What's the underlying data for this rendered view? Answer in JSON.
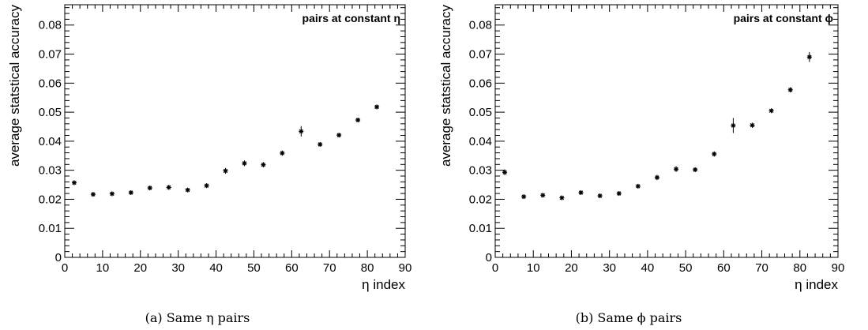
{
  "chart_data": [
    {
      "type": "scatter",
      "annotation": "pairs at constant η",
      "xlabel": "η index",
      "ylabel": "average statstical accuracy",
      "caption": "(a) Same η pairs",
      "xlim": [
        0,
        90
      ],
      "ylim": [
        0,
        0.087
      ],
      "x_ticks": [
        "0",
        "10",
        "20",
        "30",
        "40",
        "50",
        "60",
        "70",
        "80",
        "90"
      ],
      "y_ticks": [
        "0",
        "0.01",
        "0.02",
        "0.03",
        "0.04",
        "0.05",
        "0.06",
        "0.07",
        "0.08"
      ],
      "grid": false,
      "x": [
        2.5,
        7.5,
        12.5,
        17.5,
        22.5,
        27.5,
        32.5,
        37.5,
        42.5,
        47.5,
        52.5,
        57.5,
        62.5,
        67.5,
        72.5,
        77.5,
        82.5
      ],
      "y": [
        0.0257,
        0.0217,
        0.0219,
        0.0223,
        0.0239,
        0.0241,
        0.0232,
        0.0247,
        0.0298,
        0.0324,
        0.0319,
        0.0359,
        0.0434,
        0.0389,
        0.0421,
        0.0473,
        0.0518
      ],
      "yerr": [
        0.0008,
        0.0005,
        0.0005,
        0.0005,
        0.0006,
        0.0008,
        0.0006,
        0.0008,
        0.001,
        0.001,
        0.0009,
        0.0009,
        0.0018,
        0.0006,
        0.0005,
        0.0006,
        0.0008
      ]
    },
    {
      "type": "scatter",
      "annotation": "pairs at constant ϕ",
      "xlabel": "η index",
      "ylabel": "average statstical accuracy",
      "caption": "(b) Same ϕ pairs",
      "xlim": [
        0,
        90
      ],
      "ylim": [
        0,
        0.087
      ],
      "x_ticks": [
        "0",
        "10",
        "20",
        "30",
        "40",
        "50",
        "60",
        "70",
        "80",
        "90"
      ],
      "y_ticks": [
        "0",
        "0.01",
        "0.02",
        "0.03",
        "0.04",
        "0.05",
        "0.06",
        "0.07",
        "0.08"
      ],
      "grid": false,
      "x": [
        2.5,
        7.5,
        12.5,
        17.5,
        22.5,
        27.5,
        32.5,
        37.5,
        42.5,
        47.5,
        52.5,
        57.5,
        62.5,
        67.5,
        72.5,
        77.5,
        82.5
      ],
      "y": [
        0.0293,
        0.0209,
        0.0214,
        0.0205,
        0.0223,
        0.0212,
        0.022,
        0.0245,
        0.0275,
        0.0304,
        0.0302,
        0.0356,
        0.0454,
        0.0455,
        0.0505,
        0.0577,
        0.069
      ],
      "yerr": [
        0.001,
        0.0005,
        0.0005,
        0.0006,
        0.0005,
        0.0005,
        0.0005,
        0.0006,
        0.0009,
        0.001,
        0.0008,
        0.0009,
        0.0026,
        0.0009,
        0.0008,
        0.0009,
        0.0017
      ]
    }
  ]
}
